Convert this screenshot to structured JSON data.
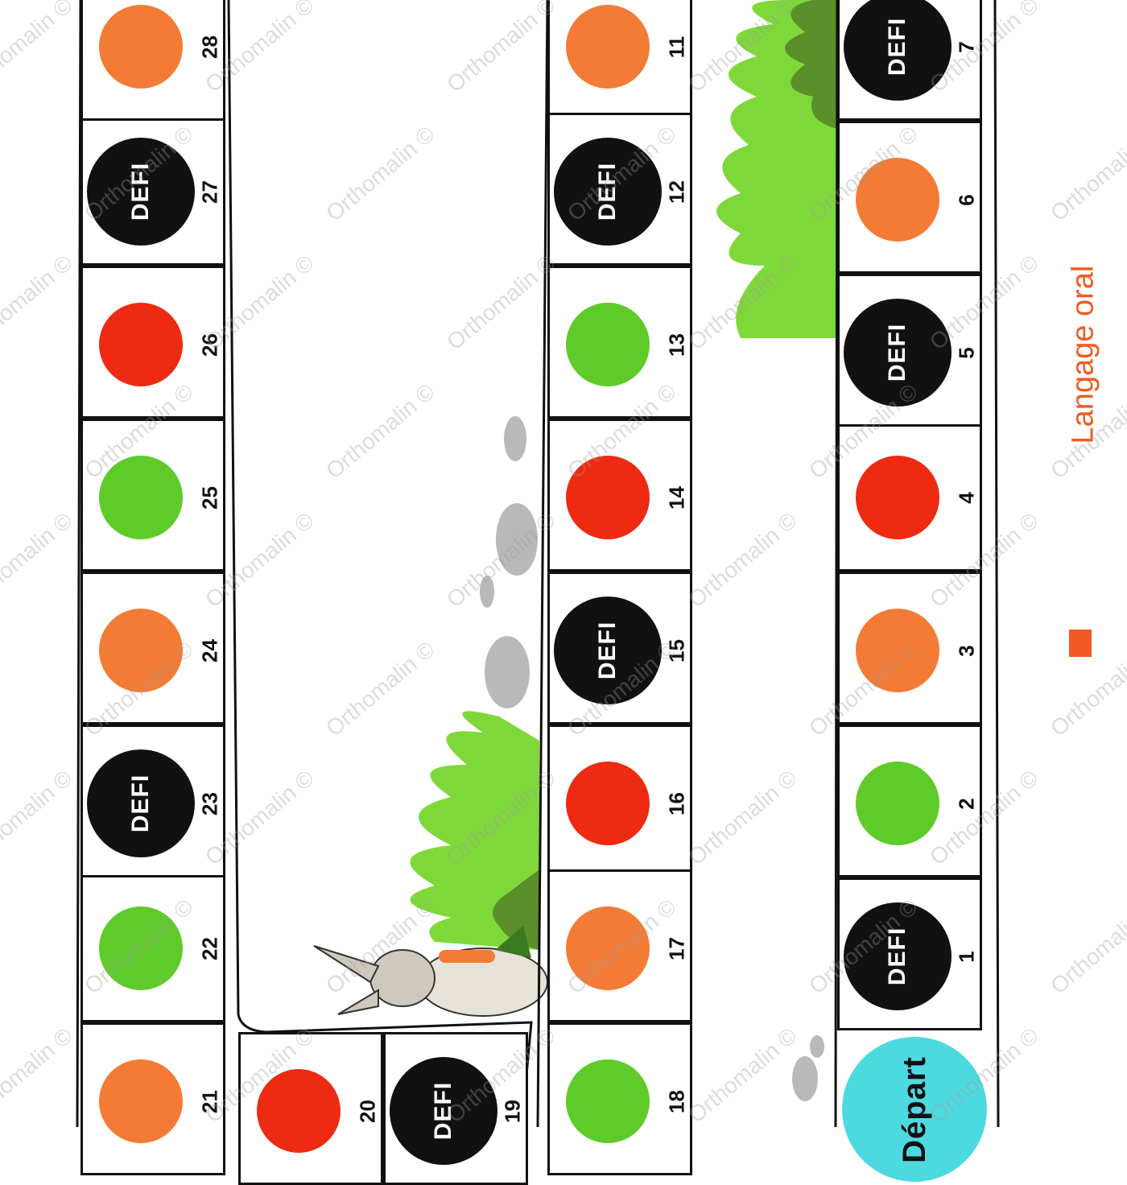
{
  "game": {
    "category_label": "Langage oral",
    "watermark_text": "Orthomalin ©",
    "start_label": "Départ",
    "challenge_label": "DEFI"
  },
  "colors": {
    "orange": "#f47b35",
    "red": "#ee2a12",
    "green": "#5fcb2a",
    "black": "#111111",
    "start": "#4dd9e0",
    "grass_light": "#7fd83a",
    "grass_dark": "#5a8f2a",
    "stone": "#b9b9b9",
    "accent": "#f05a22"
  },
  "squares": [
    {
      "num": "1",
      "color": "black",
      "label": "DEFI"
    },
    {
      "num": "2",
      "color": "green",
      "label": ""
    },
    {
      "num": "3",
      "color": "orange",
      "label": ""
    },
    {
      "num": "4",
      "color": "red",
      "label": ""
    },
    {
      "num": "5",
      "color": "black",
      "label": "DEFI"
    },
    {
      "num": "6",
      "color": "orange",
      "label": ""
    },
    {
      "num": "7",
      "color": "black",
      "label": "DEFI"
    },
    {
      "num": "11",
      "color": "orange",
      "label": ""
    },
    {
      "num": "12",
      "color": "black",
      "label": "DEFI"
    },
    {
      "num": "13",
      "color": "green",
      "label": ""
    },
    {
      "num": "14",
      "color": "red",
      "label": ""
    },
    {
      "num": "15",
      "color": "black",
      "label": "DEFI"
    },
    {
      "num": "16",
      "color": "red",
      "label": ""
    },
    {
      "num": "17",
      "color": "orange",
      "label": ""
    },
    {
      "num": "18",
      "color": "green",
      "label": ""
    },
    {
      "num": "19",
      "color": "black",
      "label": "DEFI"
    },
    {
      "num": "20",
      "color": "red",
      "label": ""
    },
    {
      "num": "21",
      "color": "orange",
      "label": ""
    },
    {
      "num": "22",
      "color": "green",
      "label": ""
    },
    {
      "num": "23",
      "color": "black",
      "label": "DEFI"
    },
    {
      "num": "24",
      "color": "orange",
      "label": ""
    },
    {
      "num": "25",
      "color": "green",
      "label": ""
    },
    {
      "num": "26",
      "color": "red",
      "label": ""
    },
    {
      "num": "27",
      "color": "black",
      "label": "DEFI"
    },
    {
      "num": "28",
      "color": "orange",
      "label": ""
    }
  ]
}
